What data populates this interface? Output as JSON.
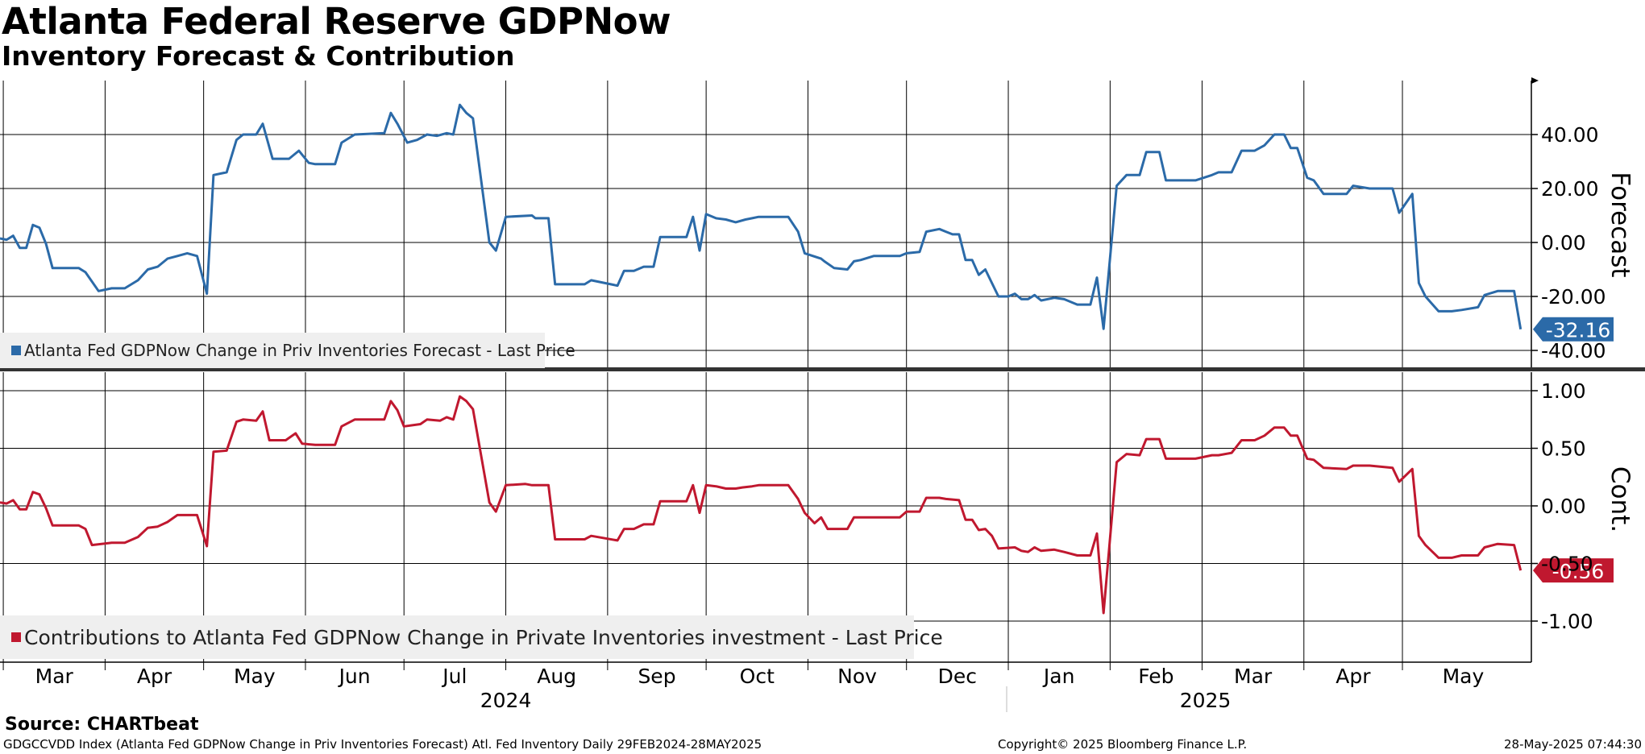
{
  "header": {
    "title": "Atlanta Federal Reserve GDPNow",
    "subtitle": "Inventory Forecast & Contribution"
  },
  "footer": {
    "source": "Source: CHARTbeat",
    "left": "GDGCCVDD Index (Atlanta Fed GDPNow Change in Priv Inventories Forecast) Atl. Fed Inventory  Daily 29FEB2024-28MAY2025",
    "middle": "Copyright© 2025 Bloomberg Finance L.P.",
    "right": "28-May-2025 07:44:30"
  },
  "colors": {
    "forecast": "#2b6aa8",
    "contribution": "#c0182f",
    "grid": "#000000"
  },
  "chart_data": [
    {
      "type": "line",
      "title": "Forecast",
      "ylabel": "Forecast",
      "ylim": [
        -45,
        60
      ],
      "yticks": [
        40,
        20,
        0,
        -20,
        -40
      ],
      "ytick_labels": [
        "40.00",
        "20.00",
        "0.00",
        "-20.00",
        "-40.00"
      ],
      "legend": "Atlanta Fed GDPNow Change in Priv Inventories Forecast - Last Price",
      "last_value_label": "-32.16",
      "points": [
        [
          0,
          1.5
        ],
        [
          2,
          1
        ],
        [
          4,
          2.5
        ],
        [
          6,
          -2
        ],
        [
          8,
          -2
        ],
        [
          10,
          6.5
        ],
        [
          12,
          5.5
        ],
        [
          14,
          -0.5
        ],
        [
          16,
          -9.5
        ],
        [
          24,
          -9.5
        ],
        [
          26,
          -11
        ],
        [
          30,
          -18
        ],
        [
          34,
          -17
        ],
        [
          38,
          -17
        ],
        [
          42,
          -14
        ],
        [
          45,
          -10
        ],
        [
          48,
          -9
        ],
        [
          51,
          -6
        ],
        [
          54,
          -5
        ],
        [
          57,
          -4
        ],
        [
          60,
          -5
        ],
        [
          63,
          -19
        ],
        [
          65,
          25
        ],
        [
          69,
          26
        ],
        [
          72,
          38
        ],
        [
          74,
          40
        ],
        [
          78,
          40
        ],
        [
          80,
          44
        ],
        [
          83,
          31
        ],
        [
          88,
          31
        ],
        [
          91,
          34
        ],
        [
          94,
          29.5
        ],
        [
          96,
          29
        ],
        [
          102,
          29
        ],
        [
          104,
          37
        ],
        [
          108,
          40
        ],
        [
          117,
          40.5
        ],
        [
          119,
          48
        ],
        [
          121,
          44
        ],
        [
          124,
          37
        ],
        [
          127,
          38
        ],
        [
          130,
          40
        ],
        [
          133,
          39.5
        ],
        [
          136,
          40.5
        ],
        [
          138,
          40
        ],
        [
          140,
          51
        ],
        [
          142,
          48
        ],
        [
          144,
          46
        ],
        [
          149,
          0
        ],
        [
          151,
          -3
        ],
        [
          154,
          9.5
        ],
        [
          162,
          10
        ],
        [
          163,
          9
        ],
        [
          167,
          9
        ],
        [
          169,
          -15.5
        ],
        [
          178,
          -15.5
        ],
        [
          180,
          -14
        ],
        [
          188,
          -16
        ],
        [
          190,
          -10.5
        ],
        [
          193,
          -10.5
        ],
        [
          196,
          -9
        ],
        [
          199,
          -9
        ],
        [
          201,
          2
        ],
        [
          209,
          2
        ],
        [
          211,
          9.5
        ],
        [
          213,
          -3
        ],
        [
          215,
          10.5
        ],
        [
          218,
          9
        ],
        [
          221,
          8.5
        ],
        [
          224,
          7.5
        ],
        [
          227,
          8.5
        ],
        [
          229,
          9
        ],
        [
          231,
          9.5
        ],
        [
          240,
          9.5
        ],
        [
          243,
          4
        ],
        [
          245,
          -4
        ],
        [
          250,
          -6
        ],
        [
          251,
          -7
        ],
        [
          254,
          -9.5
        ],
        [
          258,
          -10
        ],
        [
          260,
          -7
        ],
        [
          262,
          -6.5
        ],
        [
          266,
          -5
        ],
        [
          274,
          -5
        ],
        [
          276,
          -4
        ],
        [
          280,
          -3.5
        ],
        [
          282,
          4
        ],
        [
          286,
          5
        ],
        [
          288,
          4
        ],
        [
          290,
          3
        ],
        [
          292,
          3
        ],
        [
          294,
          -6.5
        ],
        [
          296,
          -6.5
        ],
        [
          298,
          -12
        ],
        [
          300,
          -10
        ],
        [
          304,
          -20
        ],
        [
          307,
          -20
        ],
        [
          309,
          -19
        ],
        [
          311,
          -21
        ],
        [
          313,
          -21
        ],
        [
          315,
          -19.5
        ],
        [
          317,
          -21.5
        ],
        [
          321,
          -20.5
        ],
        [
          324,
          -21
        ],
        [
          328,
          -23
        ],
        [
          332,
          -23
        ],
        [
          334,
          -13
        ],
        [
          336,
          -32
        ],
        [
          340,
          21
        ],
        [
          343,
          25
        ],
        [
          347,
          25
        ],
        [
          349,
          33.5
        ],
        [
          353,
          33.5
        ],
        [
          355,
          23
        ],
        [
          364,
          23
        ],
        [
          369,
          25
        ],
        [
          371,
          26
        ],
        [
          375,
          26
        ],
        [
          378,
          34
        ],
        [
          382,
          34
        ],
        [
          385,
          36
        ],
        [
          388,
          40
        ],
        [
          391,
          40
        ],
        [
          393,
          35
        ],
        [
          395,
          35
        ],
        [
          398,
          24
        ],
        [
          400,
          23
        ],
        [
          403,
          18
        ],
        [
          410,
          18
        ],
        [
          412,
          21
        ],
        [
          417,
          20
        ],
        [
          424,
          20
        ],
        [
          426,
          11
        ],
        [
          430,
          18
        ],
        [
          432,
          -15
        ],
        [
          434,
          -20
        ],
        [
          438,
          -25.5
        ],
        [
          442,
          -25.5
        ],
        [
          445,
          -25
        ],
        [
          450,
          -24
        ],
        [
          452,
          -19.5
        ],
        [
          456,
          -18
        ],
        [
          461,
          -18
        ],
        [
          463,
          -32.16
        ]
      ]
    },
    {
      "type": "line",
      "title": "Cont.",
      "ylabel": "Cont.",
      "ylim": [
        -1.3,
        1.1
      ],
      "yticks": [
        1,
        0.5,
        0,
        -0.5,
        -1
      ],
      "ytick_labels": [
        "1.00",
        "0.50",
        "0.00",
        "-0.50",
        "-1.00"
      ],
      "legend": "Contributions to Atlanta Fed GDPNow Change in Private Inventories investment - Last Price",
      "last_value_label": "-0.56",
      "points": [
        [
          0,
          0.03
        ],
        [
          2,
          0.02
        ],
        [
          4,
          0.05
        ],
        [
          6,
          -0.03
        ],
        [
          8,
          -0.03
        ],
        [
          10,
          0.12
        ],
        [
          12,
          0.1
        ],
        [
          14,
          -0.02
        ],
        [
          16,
          -0.17
        ],
        [
          24,
          -0.17
        ],
        [
          26,
          -0.2
        ],
        [
          28,
          -0.34
        ],
        [
          34,
          -0.32
        ],
        [
          38,
          -0.32
        ],
        [
          42,
          -0.27
        ],
        [
          45,
          -0.19
        ],
        [
          48,
          -0.18
        ],
        [
          51,
          -0.14
        ],
        [
          54,
          -0.08
        ],
        [
          57,
          -0.08
        ],
        [
          60,
          -0.08
        ],
        [
          63,
          -0.35
        ],
        [
          65,
          0.47
        ],
        [
          69,
          0.48
        ],
        [
          72,
          0.73
        ],
        [
          74,
          0.75
        ],
        [
          78,
          0.74
        ],
        [
          80,
          0.82
        ],
        [
          82,
          0.57
        ],
        [
          87,
          0.57
        ],
        [
          90,
          0.63
        ],
        [
          92,
          0.54
        ],
        [
          96,
          0.53
        ],
        [
          102,
          0.53
        ],
        [
          104,
          0.69
        ],
        [
          108,
          0.75
        ],
        [
          117,
          0.75
        ],
        [
          119,
          0.91
        ],
        [
          121,
          0.83
        ],
        [
          123,
          0.69
        ],
        [
          128,
          0.71
        ],
        [
          130,
          0.75
        ],
        [
          134,
          0.74
        ],
        [
          136,
          0.77
        ],
        [
          138,
          0.75
        ],
        [
          140,
          0.95
        ],
        [
          142,
          0.91
        ],
        [
          144,
          0.84
        ],
        [
          149,
          0.03
        ],
        [
          151,
          -0.05
        ],
        [
          154,
          0.18
        ],
        [
          160,
          0.19
        ],
        [
          162,
          0.18
        ],
        [
          167,
          0.18
        ],
        [
          169,
          -0.29
        ],
        [
          178,
          -0.29
        ],
        [
          180,
          -0.26
        ],
        [
          188,
          -0.3
        ],
        [
          190,
          -0.2
        ],
        [
          193,
          -0.2
        ],
        [
          196,
          -0.16
        ],
        [
          199,
          -0.16
        ],
        [
          201,
          0.04
        ],
        [
          209,
          0.04
        ],
        [
          211,
          0.18
        ],
        [
          213,
          -0.06
        ],
        [
          215,
          0.18
        ],
        [
          218,
          0.17
        ],
        [
          221,
          0.15
        ],
        [
          224,
          0.15
        ],
        [
          226,
          0.16
        ],
        [
          229,
          0.17
        ],
        [
          231,
          0.18
        ],
        [
          240,
          0.18
        ],
        [
          243,
          0.06
        ],
        [
          245,
          -0.06
        ],
        [
          248,
          -0.15
        ],
        [
          250,
          -0.1
        ],
        [
          252,
          -0.2
        ],
        [
          254,
          -0.2
        ],
        [
          258,
          -0.2
        ],
        [
          260,
          -0.1
        ],
        [
          266,
          -0.1
        ],
        [
          274,
          -0.1
        ],
        [
          276,
          -0.05
        ],
        [
          280,
          -0.05
        ],
        [
          282,
          0.07
        ],
        [
          286,
          0.07
        ],
        [
          288,
          0.06
        ],
        [
          292,
          0.05
        ],
        [
          294,
          -0.12
        ],
        [
          296,
          -0.12
        ],
        [
          298,
          -0.21
        ],
        [
          300,
          -0.2
        ],
        [
          302,
          -0.26
        ],
        [
          304,
          -0.37
        ],
        [
          309,
          -0.36
        ],
        [
          311,
          -0.39
        ],
        [
          313,
          -0.4
        ],
        [
          315,
          -0.36
        ],
        [
          317,
          -0.39
        ],
        [
          321,
          -0.38
        ],
        [
          324,
          -0.4
        ],
        [
          328,
          -0.43
        ],
        [
          332,
          -0.43
        ],
        [
          334,
          -0.24
        ],
        [
          336,
          -0.93
        ],
        [
          340,
          0.38
        ],
        [
          343,
          0.45
        ],
        [
          347,
          0.44
        ],
        [
          349,
          0.58
        ],
        [
          353,
          0.58
        ],
        [
          355,
          0.41
        ],
        [
          364,
          0.41
        ],
        [
          369,
          0.44
        ],
        [
          371,
          0.44
        ],
        [
          375,
          0.46
        ],
        [
          378,
          0.57
        ],
        [
          382,
          0.57
        ],
        [
          385,
          0.61
        ],
        [
          388,
          0.68
        ],
        [
          391,
          0.68
        ],
        [
          393,
          0.61
        ],
        [
          395,
          0.61
        ],
        [
          398,
          0.41
        ],
        [
          400,
          0.4
        ],
        [
          403,
          0.33
        ],
        [
          410,
          0.32
        ],
        [
          412,
          0.35
        ],
        [
          417,
          0.35
        ],
        [
          424,
          0.33
        ],
        [
          426,
          0.21
        ],
        [
          430,
          0.32
        ],
        [
          432,
          -0.26
        ],
        [
          434,
          -0.34
        ],
        [
          438,
          -0.45
        ],
        [
          442,
          -0.45
        ],
        [
          445,
          -0.43
        ],
        [
          450,
          -0.43
        ],
        [
          452,
          -0.36
        ],
        [
          456,
          -0.33
        ],
        [
          461,
          -0.34
        ],
        [
          463,
          -0.56
        ]
      ]
    }
  ],
  "x_axis": {
    "months": [
      "Mar",
      "Apr",
      "May",
      "Jun",
      "Jul",
      "Aug",
      "Sep",
      "Oct",
      "Nov",
      "Dec",
      "Jan",
      "Feb",
      "Mar",
      "Apr",
      "May"
    ],
    "month_start_days": [
      1,
      32,
      62,
      93,
      123,
      154,
      185,
      215,
      246,
      276,
      307,
      338,
      366,
      397,
      427
    ],
    "years": [
      {
        "label": "2024",
        "center_day": 154
      },
      {
        "label": "2025",
        "center_day": 367
      }
    ],
    "year_divider_day": 307,
    "last_day": 464
  }
}
